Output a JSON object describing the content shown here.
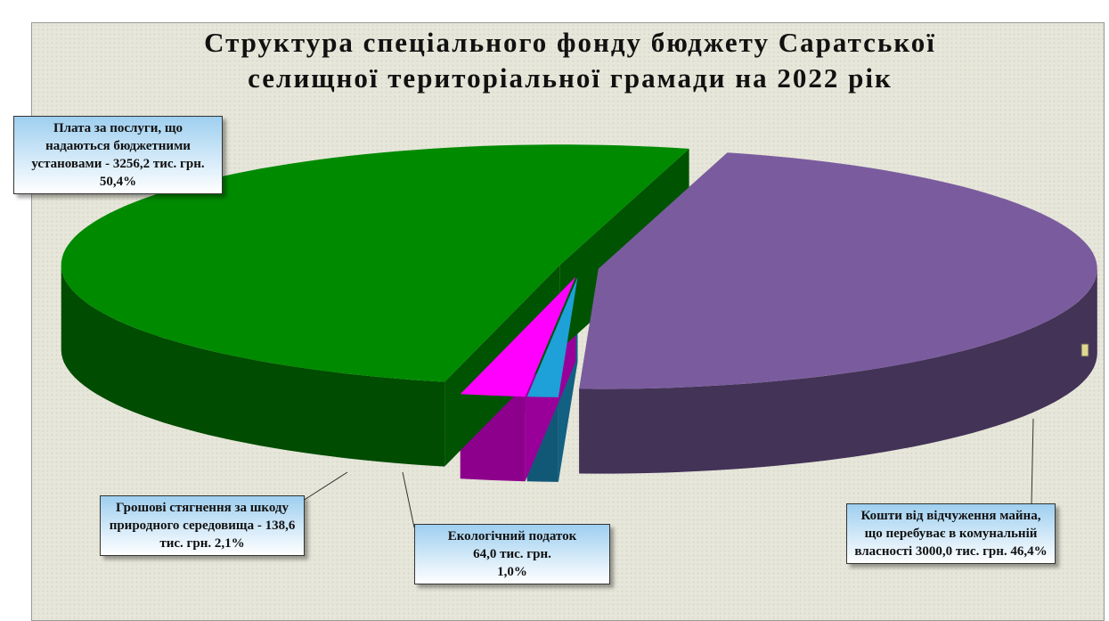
{
  "chart_data": {
    "type": "pie",
    "title": "Структура спеціального фонду бюджету Саратської селищної територіальної грамади на 2022 рік",
    "categories": [
      "Кошти від відчуження майна, що перебуває в комунальній власності",
      "Екологічний податок",
      "Грошові стягнення за шкоду природного середовища -",
      "Плата за послуги, що надаються бюджетними установами -"
    ],
    "amount_labels": [
      "3000,0 тис. грн.",
      "64,0 тис. грн.",
      "138,6 тис. грн.",
      "3256,2 тис. грн."
    ],
    "values": [
      46.4,
      1.0,
      2.1,
      50.4
    ],
    "value_labels": [
      "46,4%",
      "1,0%",
      "2,1%",
      "50,4%"
    ],
    "colors": [
      "#7a5c9e",
      "#1ea0d8",
      "#ff00ff",
      "#008a00"
    ]
  }
}
